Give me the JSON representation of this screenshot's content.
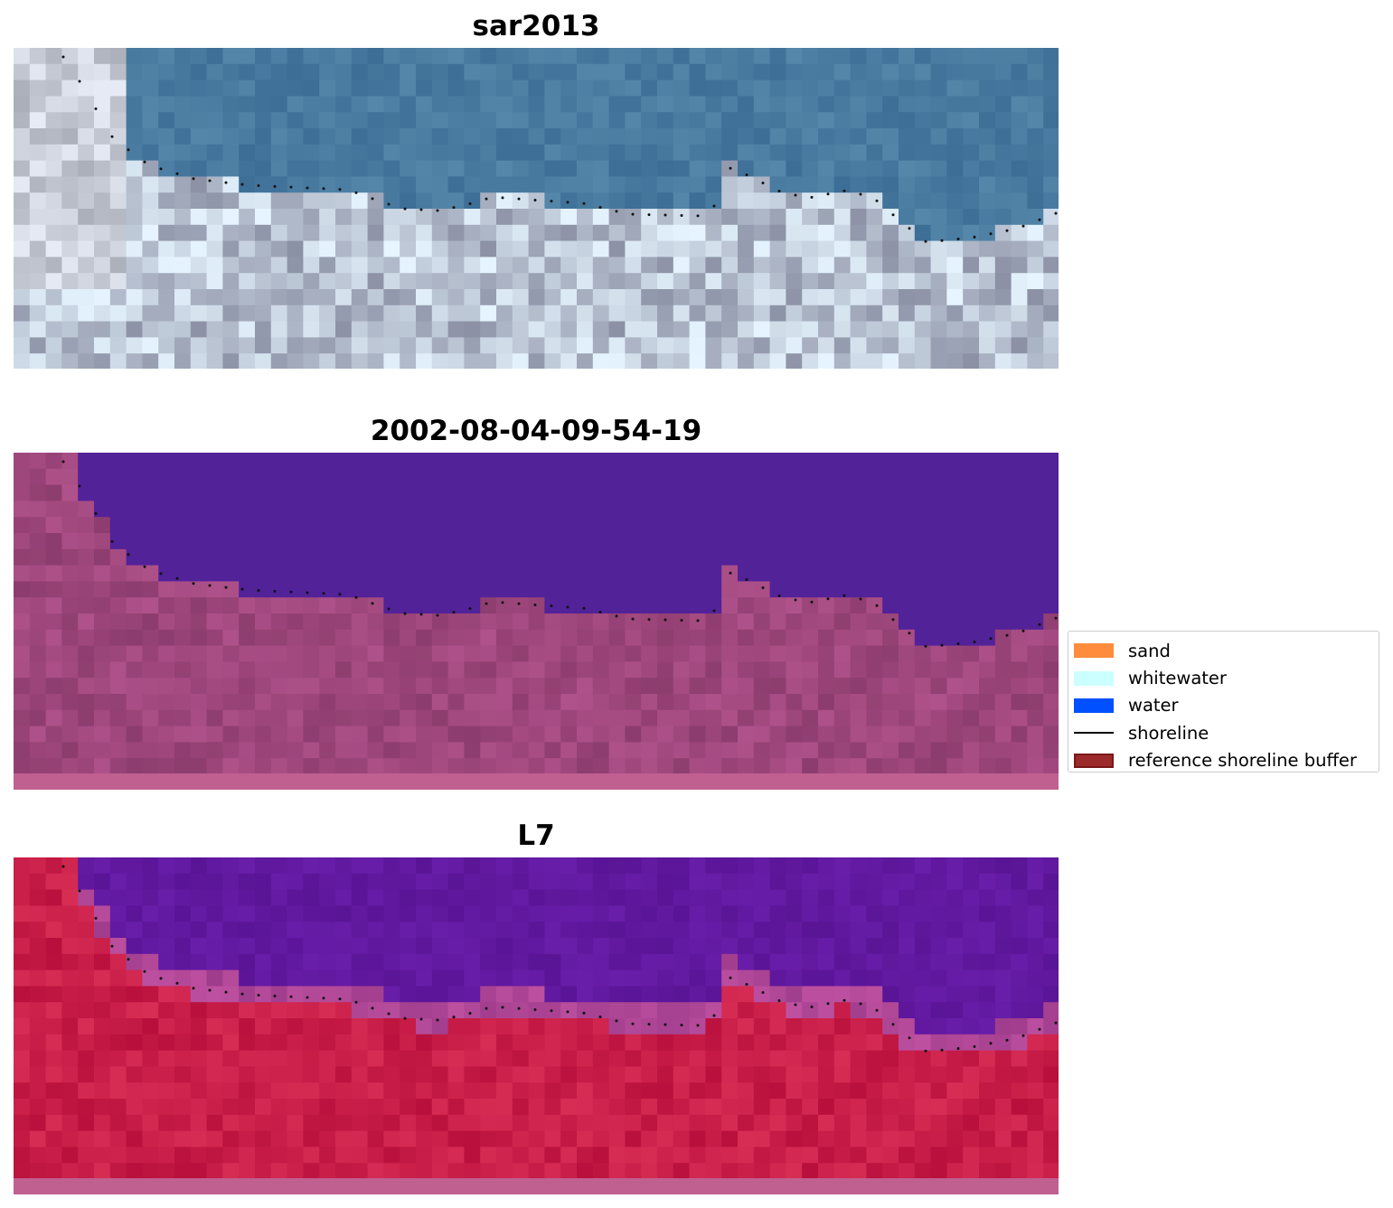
{
  "panels": [
    {
      "title": "sar2013",
      "kind": "rgb"
    },
    {
      "title": "2002-08-04-09-54-19",
      "kind": "classified"
    },
    {
      "title": "L7",
      "kind": "index"
    }
  ],
  "legend": {
    "items": [
      {
        "label": "sand",
        "color": "#ff8c3c"
      },
      {
        "label": "whitewater",
        "color": "#ccffff"
      },
      {
        "label": "water",
        "color": "#0050ff"
      },
      {
        "label": "shoreline",
        "color": "#000000"
      },
      {
        "label": "reference shoreline buffer",
        "color": "#9c2a2a"
      }
    ]
  },
  "colors": {
    "water_classified": "#522299",
    "land_classified": "#a04878",
    "water_index": "#5c1499",
    "land_index": "#c81e4a"
  }
}
